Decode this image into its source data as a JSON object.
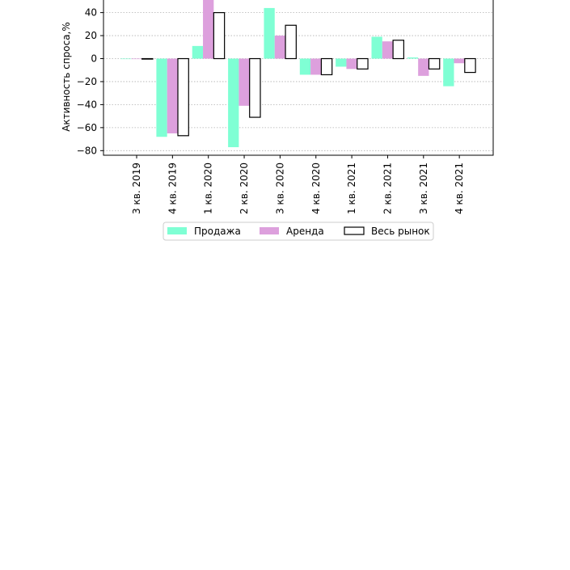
{
  "chart_data": {
    "type": "bar",
    "ylabel": "Активность спроса,%",
    "xlabel": "",
    "ylim": [
      -84,
      58
    ],
    "yticks": [
      -80,
      -60,
      -40,
      -20,
      0,
      20,
      40,
      60
    ],
    "grid": "horizontal-dotted",
    "legend_position": "bottom-center",
    "categories": [
      "3 кв. 2019",
      "4 кв. 2019",
      "1 кв. 2020",
      "2 кв. 2020",
      "3 кв. 2020",
      "4 кв. 2020",
      "1 кв. 2021",
      "2 кв. 2021",
      "3 кв. 2021",
      "4 кв. 2021"
    ],
    "series": [
      {
        "name": "Продажа",
        "color": "#7fffd4",
        "style": "filled",
        "values": [
          0,
          -68,
          11,
          -77,
          44,
          -14,
          -7,
          19,
          1,
          -24
        ]
      },
      {
        "name": "Аренда",
        "color": "#dda0dd",
        "style": "filled",
        "values": [
          0,
          -65,
          55,
          -41,
          20,
          -14,
          -9,
          15,
          -15,
          -4
        ]
      },
      {
        "name": "Весь рынок",
        "color": "#000000",
        "style": "outline",
        "values": [
          0,
          -67,
          40,
          -51,
          29,
          -14,
          -9,
          16,
          -9,
          -12
        ]
      }
    ]
  }
}
